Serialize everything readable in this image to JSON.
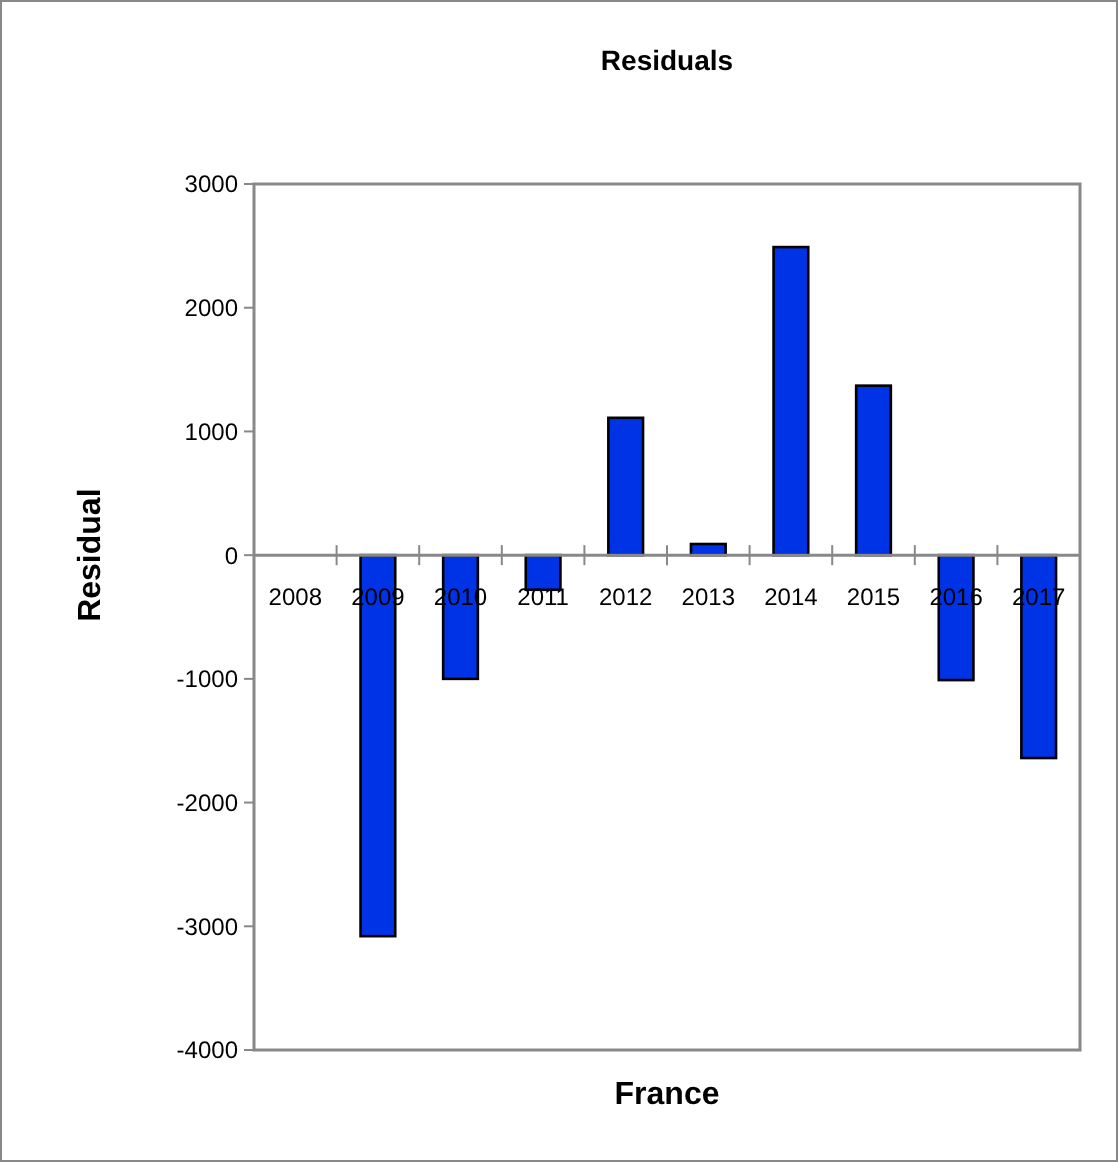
{
  "chart_data": {
    "type": "bar",
    "title": "Residuals",
    "xlabel": "France",
    "ylabel": "Residual",
    "categories": [
      "2008",
      "2009",
      "2010",
      "2011",
      "2012",
      "2013",
      "2014",
      "2015",
      "2016",
      "2017"
    ],
    "values": [
      null,
      -3080,
      -1000,
      -280,
      1110,
      90,
      2490,
      1370,
      -1010,
      -1640
    ],
    "color": "#0033e6",
    "ylim": [
      -4000,
      3000
    ],
    "yticks": [
      -4000,
      -3000,
      -2000,
      -1000,
      0,
      1000,
      2000,
      3000
    ],
    "grid": false
  }
}
